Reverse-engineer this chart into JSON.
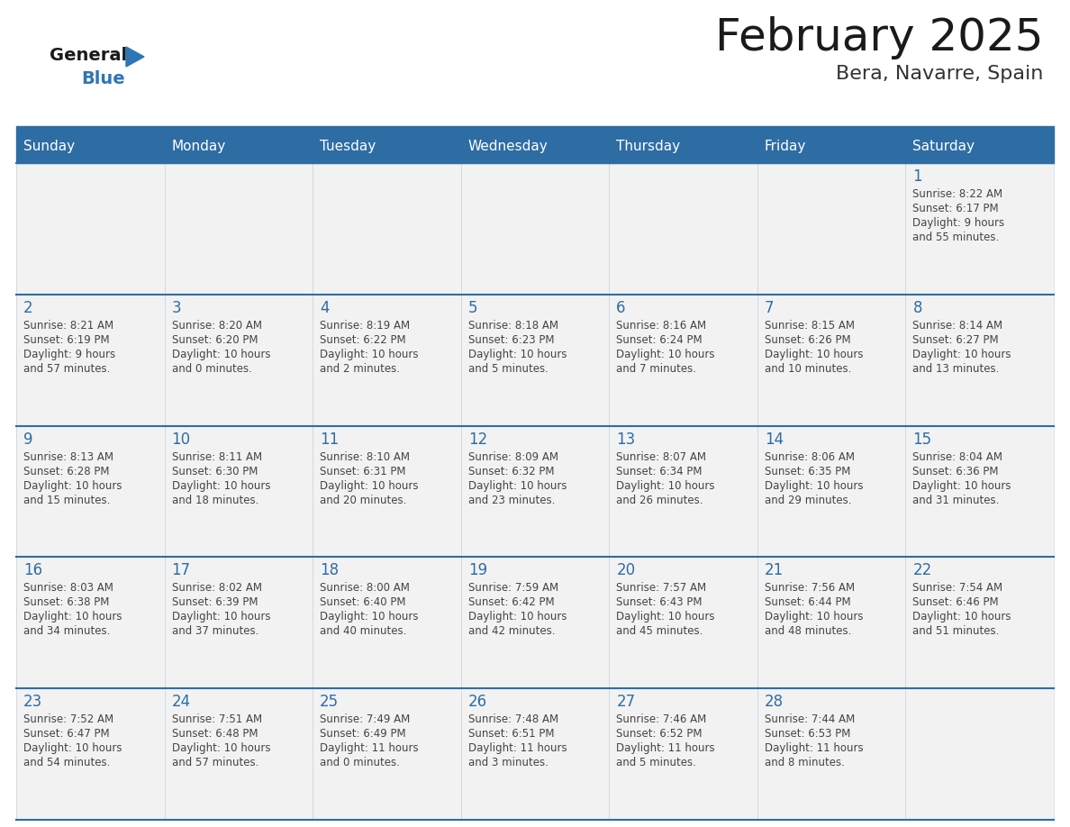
{
  "title": "February 2025",
  "subtitle": "Bera, Navarre, Spain",
  "header_bg": "#2E6DA4",
  "header_text_color": "#FFFFFF",
  "cell_bg": "#F2F2F2",
  "text_color": "#444444",
  "day_number_color": "#2E6DA4",
  "line_color": "#2E6DA4",
  "days_of_week": [
    "Sunday",
    "Monday",
    "Tuesday",
    "Wednesday",
    "Thursday",
    "Friday",
    "Saturday"
  ],
  "logo_general_color": "#1A1A1A",
  "logo_blue_color": "#2E75B6",
  "calendar_data": [
    [
      null,
      null,
      null,
      null,
      null,
      null,
      {
        "day": 1,
        "sunrise": "8:22 AM",
        "sunset": "6:17 PM",
        "daylight": "9 hours\nand 55 minutes."
      }
    ],
    [
      {
        "day": 2,
        "sunrise": "8:21 AM",
        "sunset": "6:19 PM",
        "daylight": "9 hours\nand 57 minutes."
      },
      {
        "day": 3,
        "sunrise": "8:20 AM",
        "sunset": "6:20 PM",
        "daylight": "10 hours\nand 0 minutes."
      },
      {
        "day": 4,
        "sunrise": "8:19 AM",
        "sunset": "6:22 PM",
        "daylight": "10 hours\nand 2 minutes."
      },
      {
        "day": 5,
        "sunrise": "8:18 AM",
        "sunset": "6:23 PM",
        "daylight": "10 hours\nand 5 minutes."
      },
      {
        "day": 6,
        "sunrise": "8:16 AM",
        "sunset": "6:24 PM",
        "daylight": "10 hours\nand 7 minutes."
      },
      {
        "day": 7,
        "sunrise": "8:15 AM",
        "sunset": "6:26 PM",
        "daylight": "10 hours\nand 10 minutes."
      },
      {
        "day": 8,
        "sunrise": "8:14 AM",
        "sunset": "6:27 PM",
        "daylight": "10 hours\nand 13 minutes."
      }
    ],
    [
      {
        "day": 9,
        "sunrise": "8:13 AM",
        "sunset": "6:28 PM",
        "daylight": "10 hours\nand 15 minutes."
      },
      {
        "day": 10,
        "sunrise": "8:11 AM",
        "sunset": "6:30 PM",
        "daylight": "10 hours\nand 18 minutes."
      },
      {
        "day": 11,
        "sunrise": "8:10 AM",
        "sunset": "6:31 PM",
        "daylight": "10 hours\nand 20 minutes."
      },
      {
        "day": 12,
        "sunrise": "8:09 AM",
        "sunset": "6:32 PM",
        "daylight": "10 hours\nand 23 minutes."
      },
      {
        "day": 13,
        "sunrise": "8:07 AM",
        "sunset": "6:34 PM",
        "daylight": "10 hours\nand 26 minutes."
      },
      {
        "day": 14,
        "sunrise": "8:06 AM",
        "sunset": "6:35 PM",
        "daylight": "10 hours\nand 29 minutes."
      },
      {
        "day": 15,
        "sunrise": "8:04 AM",
        "sunset": "6:36 PM",
        "daylight": "10 hours\nand 31 minutes."
      }
    ],
    [
      {
        "day": 16,
        "sunrise": "8:03 AM",
        "sunset": "6:38 PM",
        "daylight": "10 hours\nand 34 minutes."
      },
      {
        "day": 17,
        "sunrise": "8:02 AM",
        "sunset": "6:39 PM",
        "daylight": "10 hours\nand 37 minutes."
      },
      {
        "day": 18,
        "sunrise": "8:00 AM",
        "sunset": "6:40 PM",
        "daylight": "10 hours\nand 40 minutes."
      },
      {
        "day": 19,
        "sunrise": "7:59 AM",
        "sunset": "6:42 PM",
        "daylight": "10 hours\nand 42 minutes."
      },
      {
        "day": 20,
        "sunrise": "7:57 AM",
        "sunset": "6:43 PM",
        "daylight": "10 hours\nand 45 minutes."
      },
      {
        "day": 21,
        "sunrise": "7:56 AM",
        "sunset": "6:44 PM",
        "daylight": "10 hours\nand 48 minutes."
      },
      {
        "day": 22,
        "sunrise": "7:54 AM",
        "sunset": "6:46 PM",
        "daylight": "10 hours\nand 51 minutes."
      }
    ],
    [
      {
        "day": 23,
        "sunrise": "7:52 AM",
        "sunset": "6:47 PM",
        "daylight": "10 hours\nand 54 minutes."
      },
      {
        "day": 24,
        "sunrise": "7:51 AM",
        "sunset": "6:48 PM",
        "daylight": "10 hours\nand 57 minutes."
      },
      {
        "day": 25,
        "sunrise": "7:49 AM",
        "sunset": "6:49 PM",
        "daylight": "11 hours\nand 0 minutes."
      },
      {
        "day": 26,
        "sunrise": "7:48 AM",
        "sunset": "6:51 PM",
        "daylight": "11 hours\nand 3 minutes."
      },
      {
        "day": 27,
        "sunrise": "7:46 AM",
        "sunset": "6:52 PM",
        "daylight": "11 hours\nand 5 minutes."
      },
      {
        "day": 28,
        "sunrise": "7:44 AM",
        "sunset": "6:53 PM",
        "daylight": "11 hours\nand 8 minutes."
      },
      null
    ]
  ]
}
